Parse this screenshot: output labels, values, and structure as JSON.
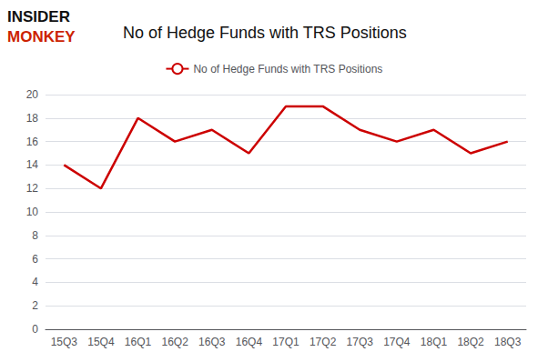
{
  "chart_data": {
    "type": "line",
    "title": "No of Hedge Funds with TRS Positions",
    "annotations": [
      {
        "text": "INSIDER",
        "color": "#111111"
      },
      {
        "text": "MONKEY",
        "color": "#cc2200"
      }
    ],
    "categories": [
      "15Q3",
      "15Q4",
      "16Q1",
      "16Q2",
      "16Q3",
      "16Q4",
      "17Q1",
      "17Q2",
      "17Q3",
      "17Q4",
      "18Q1",
      "18Q2",
      "18Q3"
    ],
    "series": [
      {
        "name": "No of Hedge Funds with TRS Positions",
        "color": "#cc0000",
        "values": [
          14,
          12,
          18,
          16,
          17,
          15,
          19,
          19,
          17,
          16,
          17,
          15,
          16
        ]
      }
    ],
    "ylim": [
      0,
      20
    ],
    "yticks": [
      0,
      2,
      4,
      6,
      8,
      10,
      12,
      14,
      16,
      18,
      20
    ],
    "grid": true,
    "legend": "top"
  }
}
